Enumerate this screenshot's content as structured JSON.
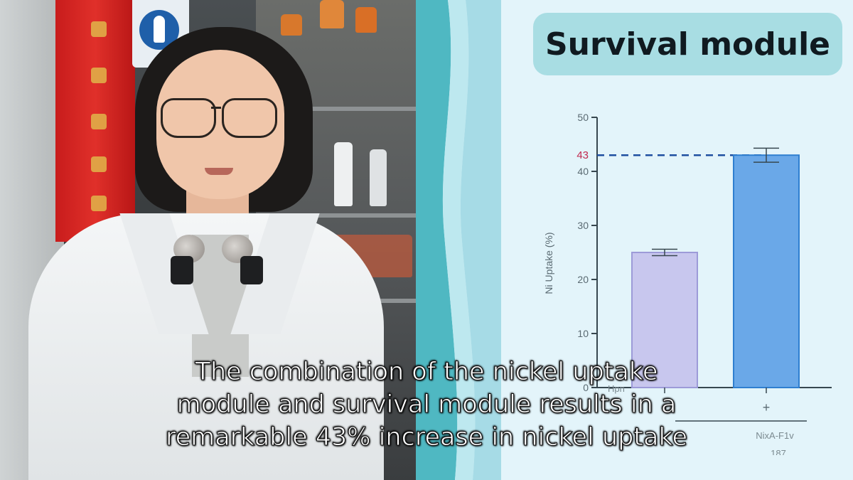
{
  "slide": {
    "title": "Survival module",
    "colors": {
      "accent_teal": "#4fb8c2",
      "title_box": "#a8dde3",
      "bar1": "#c8c7ee",
      "bar2": "#6aa8e8",
      "bar2_edge": "#2f7fd0",
      "highlight": "#c0294f",
      "axis": "#37474f"
    }
  },
  "chart_data": {
    "type": "bar",
    "ylabel": "Ni Uptake (%)",
    "ylim": [
      0,
      50
    ],
    "yticks": [
      0,
      10,
      20,
      30,
      40,
      50
    ],
    "categories": [
      "-",
      "+"
    ],
    "values": [
      25,
      43
    ],
    "errors": [
      0.6,
      1.3
    ],
    "highlight_value": "43",
    "x_row_labels": [
      "Hpn",
      "NixA-F1v",
      "187"
    ]
  },
  "captions": {
    "lines": [
      "The combination of the nickel uptake",
      "module and survival module results in a",
      "remarkable 43% increase in nickel uptake"
    ]
  }
}
